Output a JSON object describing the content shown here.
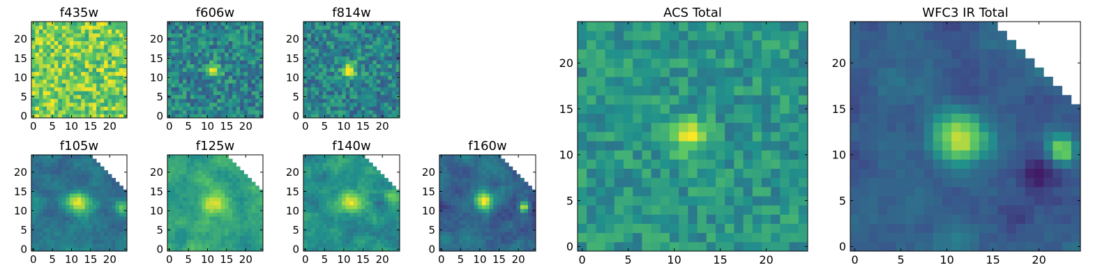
{
  "figure": {
    "colormap": "viridis",
    "colormap_stops": [
      "#440154",
      "#3b528b",
      "#21918c",
      "#5ec962",
      "#fde725"
    ]
  },
  "chart_data": [
    {
      "id": "f435w",
      "type": "heatmap",
      "title": "f435w",
      "grid_size": 25,
      "xlim": [
        0,
        24
      ],
      "ylim": [
        0,
        24
      ],
      "xticks": [
        "0",
        "5",
        "10",
        "15",
        "20"
      ],
      "yticks": [
        "0",
        "5",
        "10",
        "15",
        "20"
      ],
      "pattern": "noise",
      "noise_level": 0.78,
      "noise_spread": 0.22,
      "sources": [],
      "masked_corner": null
    },
    {
      "id": "f606w",
      "type": "heatmap",
      "title": "f606w",
      "grid_size": 25,
      "xlim": [
        0,
        24
      ],
      "ylim": [
        0,
        24
      ],
      "xticks": [
        "0",
        "5",
        "10",
        "15",
        "20"
      ],
      "yticks": [
        "0",
        "5",
        "10",
        "15",
        "20"
      ],
      "pattern": "noise",
      "noise_level": 0.45,
      "noise_spread": 0.18,
      "sources": [
        {
          "x": 11.5,
          "y": 12,
          "peak": 0.55,
          "radius": 1.3
        }
      ],
      "masked_corner": null
    },
    {
      "id": "f814w",
      "type": "heatmap",
      "title": "f814w",
      "grid_size": 25,
      "xlim": [
        0,
        24
      ],
      "ylim": [
        0,
        24
      ],
      "xticks": [
        "0",
        "5",
        "10",
        "15",
        "20"
      ],
      "yticks": [
        "0",
        "5",
        "10",
        "15",
        "20"
      ],
      "pattern": "noise",
      "noise_level": 0.45,
      "noise_spread": 0.18,
      "sources": [
        {
          "x": 11.5,
          "y": 12,
          "peak": 0.55,
          "radius": 1.3
        }
      ],
      "masked_corner": null
    },
    {
      "id": "f105w",
      "type": "heatmap",
      "title": "f105w",
      "grid_size": 25,
      "xlim": [
        0,
        24
      ],
      "ylim": [
        0,
        24
      ],
      "xticks": [
        "0",
        "5",
        "10",
        "15",
        "20"
      ],
      "yticks": [
        "0",
        "5",
        "10",
        "15",
        "20"
      ],
      "pattern": "smooth",
      "noise_level": 0.4,
      "noise_spread": 0.12,
      "sources": [
        {
          "x": 11.5,
          "y": 12,
          "peak": 0.55,
          "radius": 2.0
        },
        {
          "x": 23,
          "y": 11,
          "peak": 0.3,
          "radius": 1.2
        }
      ],
      "masked_corner": "top-right"
    },
    {
      "id": "f125w",
      "type": "heatmap",
      "title": "f125w",
      "grid_size": 25,
      "xlim": [
        0,
        24
      ],
      "ylim": [
        0,
        24
      ],
      "xticks": [
        "0",
        "5",
        "10",
        "15",
        "20"
      ],
      "yticks": [
        "0",
        "5",
        "10",
        "15",
        "20"
      ],
      "pattern": "smooth",
      "noise_level": 0.58,
      "noise_spread": 0.12,
      "sources": [
        {
          "x": 11.5,
          "y": 12,
          "peak": 0.38,
          "radius": 2.4
        }
      ],
      "masked_corner": "top-right"
    },
    {
      "id": "f140w",
      "type": "heatmap",
      "title": "f140w",
      "grid_size": 25,
      "xlim": [
        0,
        24
      ],
      "ylim": [
        0,
        24
      ],
      "xticks": [
        "0",
        "5",
        "10",
        "15",
        "20"
      ],
      "yticks": [
        "0",
        "5",
        "10",
        "15",
        "20"
      ],
      "pattern": "smooth",
      "noise_level": 0.5,
      "noise_spread": 0.13,
      "sources": [
        {
          "x": 11.5,
          "y": 12,
          "peak": 0.45,
          "radius": 2.0
        },
        {
          "x": 22.5,
          "y": 14,
          "peak": 0.3,
          "radius": 1.3
        }
      ],
      "masked_corner": "top-right"
    },
    {
      "id": "f160w",
      "type": "heatmap",
      "title": "f160w",
      "grid_size": 25,
      "xlim": [
        0,
        24
      ],
      "ylim": [
        0,
        24
      ],
      "xticks": [
        "0",
        "5",
        "10",
        "15",
        "20"
      ],
      "yticks": [
        "0",
        "5",
        "10",
        "15",
        "20"
      ],
      "pattern": "smooth",
      "noise_level": 0.33,
      "noise_spread": 0.12,
      "sources": [
        {
          "x": 11,
          "y": 12.5,
          "peak": 0.6,
          "radius": 1.6
        },
        {
          "x": 21.5,
          "y": 11,
          "peak": 0.65,
          "radius": 0.9
        }
      ],
      "masked_corner": "top-right"
    },
    {
      "id": "acs-total",
      "type": "heatmap",
      "title": "ACS Total",
      "grid_size": 25,
      "xlim": [
        0,
        24
      ],
      "ylim": [
        0,
        24
      ],
      "xticks": [
        "0",
        "5",
        "10",
        "15",
        "20"
      ],
      "yticks": [
        "0",
        "5",
        "10",
        "15",
        "20"
      ],
      "pattern": "noise",
      "noise_level": 0.52,
      "noise_spread": 0.13,
      "sources": [
        {
          "x": 11.5,
          "y": 12,
          "peak": 0.5,
          "radius": 1.3
        }
      ],
      "masked_corner": null
    },
    {
      "id": "wfc3-ir-total",
      "type": "heatmap",
      "title": "WFC3 IR Total",
      "grid_size": 25,
      "xlim": [
        0,
        24
      ],
      "ylim": [
        0,
        24
      ],
      "xticks": [
        "0",
        "5",
        "10",
        "15",
        "20"
      ],
      "yticks": [
        "0",
        "5",
        "10",
        "15",
        "20"
      ],
      "pattern": "smooth",
      "noise_level": 0.3,
      "noise_spread": 0.09,
      "sources": [
        {
          "x": 11.5,
          "y": 12,
          "peak": 0.65,
          "radius": 2.0
        },
        {
          "x": 22.5,
          "y": 10.5,
          "peak": 0.6,
          "radius": 1.0
        },
        {
          "x": 20,
          "y": 8,
          "peak": -0.22,
          "radius": 1.6
        }
      ],
      "masked_corner": "top-right"
    }
  ]
}
